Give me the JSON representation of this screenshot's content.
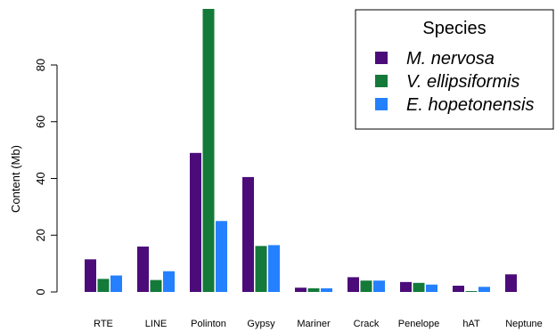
{
  "chart_data": {
    "type": "bar",
    "categories": [
      "RTE",
      "LINE",
      "Polinton",
      "Gypsy",
      "Mariner",
      "Crack",
      "Penelope",
      "hAT",
      "Neptune"
    ],
    "series": [
      {
        "name": "M. nervosa",
        "color": "#4B0C7A",
        "values": [
          11.5,
          16,
          49,
          40.5,
          1.5,
          5.2,
          3.5,
          2.2,
          6.2
        ]
      },
      {
        "name": "V. ellipsiformis",
        "color": "#137A3A",
        "values": [
          4.6,
          4.2,
          100,
          16.2,
          1.3,
          4.0,
          3.2,
          0.3,
          null
        ]
      },
      {
        "name": "E. hopetonensis",
        "color": "#2480FF",
        "values": [
          5.8,
          7.3,
          25,
          16.5,
          1.3,
          4.0,
          2.6,
          1.8,
          null
        ]
      }
    ],
    "ylabel": "Content (Mb)",
    "xlabel": "",
    "yticks": [
      0,
      20,
      40,
      60,
      80
    ],
    "ylim": [
      0,
      100
    ],
    "grid": false,
    "legend": {
      "title": "Species",
      "position": "top-right"
    }
  }
}
